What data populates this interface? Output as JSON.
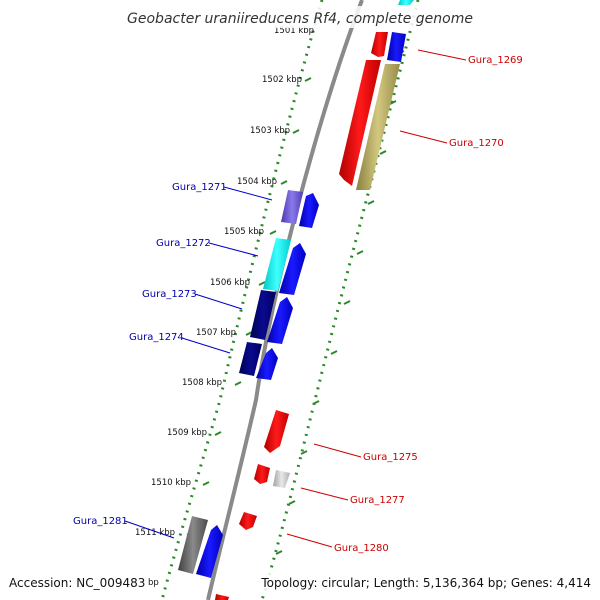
{
  "title": "Geobacter uraniireducens Rf4, complete genome",
  "footer": {
    "accession": "Accession: NC_009483",
    "summary": "Topology: circular; Length: 5,136,364 bp; Genes: 4,414"
  },
  "colors": {
    "backbone": "#8a8a8a",
    "tick_ring": "#2a8a2a",
    "forward_cds": "#ff0000",
    "reverse_cds": "#0000ff",
    "left_label": "#0000aa",
    "right_label": "#cc0000"
  },
  "ticks": [
    {
      "label": "1501 kbp"
    },
    {
      "label": "1502 kbp"
    },
    {
      "label": "1503 kbp"
    },
    {
      "label": "1504 kbp"
    },
    {
      "label": "1505 kbp"
    },
    {
      "label": "1506 kbp"
    },
    {
      "label": "1507 kbp"
    },
    {
      "label": "1508 kbp"
    },
    {
      "label": "1509 kbp"
    },
    {
      "label": "1510 kbp"
    },
    {
      "label": "1511 kbp"
    },
    {
      "label": "bp"
    }
  ],
  "left_labels": [
    "Gura_1271",
    "Gura_1272",
    "Gura_1273",
    "Gura_1274",
    "Gura_1281"
  ],
  "right_labels": [
    "Gura_1269",
    "Gura_1270",
    "Gura_1275",
    "Gura_1277",
    "Gura_1280"
  ]
}
